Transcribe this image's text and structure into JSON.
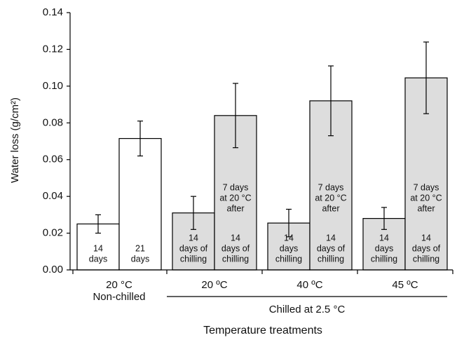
{
  "chart_data": {
    "type": "bar",
    "ylabel": "Water loss (g/cm²)",
    "xlabel": "Temperature treatments",
    "values": [
      0.025,
      0.0715,
      0.031,
      0.084,
      0.0255,
      0.092,
      0.028,
      0.1045
    ],
    "errors": [
      0.005,
      0.0095,
      0.009,
      0.0175,
      0.0075,
      0.019,
      0.006,
      0.0195
    ],
    "colors": [
      "#ffffff",
      "#ffffff",
      "#dddddd",
      "#dddddd",
      "#dddddd",
      "#dddddd",
      "#dddddd",
      "#dddddd"
    ],
    "bar_labels": [
      [
        "14",
        "days"
      ],
      [
        "21",
        "days"
      ],
      [
        "14",
        "days of",
        "chilling"
      ],
      [
        "14",
        "days of",
        "chilling"
      ],
      [
        "14",
        "days",
        "chilling"
      ],
      [
        "14",
        "days of",
        "chilling"
      ],
      [
        "14",
        "days",
        "chilling"
      ],
      [
        "14",
        "days of",
        "chilling"
      ]
    ],
    "bar_top_labels": [
      null,
      null,
      null,
      [
        "7 days",
        "at 20 °C",
        "after"
      ],
      null,
      [
        "7 days",
        "at 20 °C",
        "after"
      ],
      null,
      [
        "7 days",
        "at 20 °C",
        "after"
      ]
    ],
    "groups": [
      [
        "20 °C",
        "Non-chilled"
      ],
      [
        "20 ºC"
      ],
      [
        "40 ºC"
      ],
      [
        "45 ºC"
      ]
    ],
    "bracket_label": "Chilled at 2.5 °C",
    "ylim": [
      0,
      0.14
    ],
    "yticks": [
      {
        "value": 0,
        "label": "0.00"
      },
      {
        "value": 0.02,
        "label": "0.02"
      },
      {
        "value": 0.04,
        "label": "0.04"
      },
      {
        "value": 0.06,
        "label": "0.06"
      },
      {
        "value": 0.08,
        "label": "0.08"
      },
      {
        "value": 0.1,
        "label": "0.10"
      },
      {
        "value": 0.12,
        "label": "0.12"
      },
      {
        "value": 0.14,
        "label": "0.14"
      }
    ]
  }
}
